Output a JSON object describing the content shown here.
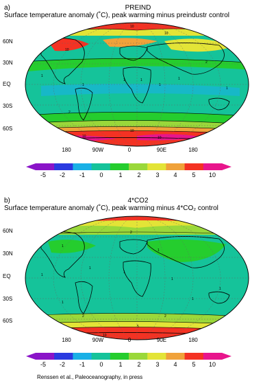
{
  "panel_a": {
    "label": "a)",
    "title": "PREIND",
    "subtitle": "Surface temperature anomaly (˚C), peak warming minus preindustr control",
    "lat_labels": [
      "60N",
      "30N",
      "EQ",
      "30S",
      "60S"
    ],
    "lon_labels": [
      "180",
      "90W",
      "0",
      "90E",
      "180"
    ],
    "contour_labels": [
      "10",
      "10",
      "10",
      "1",
      "1",
      "1",
      "1",
      "1",
      "1",
      "1",
      "2",
      "2",
      "5",
      "5",
      "10",
      "10",
      "10",
      "10",
      "10"
    ]
  },
  "panel_b": {
    "label": "b)",
    "title": "4*CO2",
    "subtitle": "Surface temperature anomaly (˚C), peak warming minus 4*CO₂ control",
    "lat_labels": [
      "60N",
      "30N",
      "EQ",
      "30S",
      "60S"
    ],
    "lon_labels": [
      "180",
      "90W",
      "0",
      "90E",
      "180"
    ],
    "contour_labels": [
      "1",
      "1",
      "1",
      "1",
      "1",
      "1",
      "1",
      "1",
      "1",
      "2",
      "2",
      "2",
      "5",
      "5",
      "5",
      "10"
    ]
  },
  "colorbar": {
    "labels": [
      "-5",
      "-2",
      "-1",
      "0",
      "1",
      "2",
      "3",
      "4",
      "5",
      "10"
    ],
    "colors": [
      "#8a14c8",
      "#2a3ae0",
      "#19b0e6",
      "#15c39a",
      "#25cd2e",
      "#9ad83a",
      "#e3e437",
      "#f0a23a",
      "#f43223",
      "#e8158c"
    ]
  },
  "palette": {
    "ocean_base": "#15c39a",
    "land_base": "#25cd2e",
    "warm_2": "#9ad83a",
    "warm_3": "#e3e437",
    "warm_4": "#f0a23a",
    "warm_5": "#f43223",
    "warm_10": "#e8158c",
    "light_blue": "#19b0e6"
  },
  "credit": "Renssen et al., Paleoceanography, in press"
}
